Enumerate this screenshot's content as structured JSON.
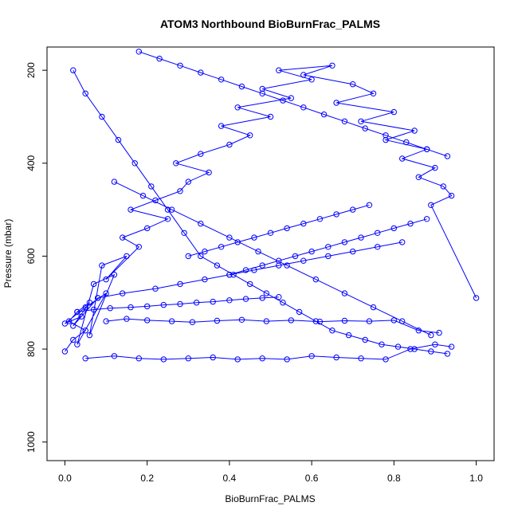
{
  "chart_data": {
    "type": "scatter",
    "title": "ATOM3 Northbound BioBurnFrac_PALMS",
    "xlabel": "BioBurnFrac_PALMS",
    "ylabel": "Pressure (mbar)",
    "xlim": [
      0.0,
      1.0
    ],
    "ylim": [
      1040,
      150
    ],
    "y_reversed": true,
    "x_ticks": [
      0.0,
      0.2,
      0.4,
      0.6,
      0.8,
      1.0
    ],
    "x_tick_labels": [
      "0.0",
      "0.2",
      "0.4",
      "0.6",
      "0.8",
      "1.0"
    ],
    "y_ticks": [
      200,
      400,
      600,
      800,
      1000
    ],
    "y_tick_labels": [
      "200",
      "400",
      "600",
      "800",
      "1000"
    ],
    "grid": false,
    "legend": "none",
    "marker": "open-circle",
    "connected": true,
    "color": "#0000ff",
    "series": [
      {
        "x": [
          0.0,
          0.02,
          0.05,
          0.01,
          0.03,
          0.06,
          0.02,
          0.08,
          0.04,
          0.0,
          0.05,
          0.1,
          0.03,
          0.07,
          0.12,
          0.06,
          0.09,
          0.15,
          0.1,
          0.18,
          0.14,
          0.2,
          0.25,
          0.16,
          0.22,
          0.28,
          0.3,
          0.35,
          0.27,
          0.33,
          0.4,
          0.45,
          0.38,
          0.5,
          0.42,
          0.55,
          0.48,
          0.6,
          0.52,
          0.65,
          0.58,
          0.7,
          0.75,
          0.66,
          0.8,
          0.72,
          0.85,
          0.78,
          0.88,
          0.82,
          0.9,
          0.86,
          0.92,
          0.94,
          0.89,
          1.0
        ],
        "y": [
          805,
          780,
          760,
          740,
          720,
          700,
          750,
          690,
          730,
          745,
          710,
          680,
          790,
          660,
          640,
          770,
          620,
          600,
          650,
          580,
          560,
          540,
          520,
          500,
          480,
          460,
          440,
          420,
          400,
          380,
          360,
          340,
          320,
          300,
          280,
          260,
          240,
          220,
          200,
          190,
          210,
          230,
          250,
          270,
          290,
          310,
          330,
          350,
          370,
          390,
          410,
          430,
          450,
          470,
          490,
          690
        ]
      },
      {
        "x": [
          0.02,
          0.05,
          0.09,
          0.13,
          0.17,
          0.21,
          0.25,
          0.29,
          0.33,
          0.37,
          0.41,
          0.45,
          0.49,
          0.53,
          0.57,
          0.61,
          0.65,
          0.69,
          0.73,
          0.77,
          0.81,
          0.85,
          0.89,
          0.93
        ],
        "y": [
          200,
          250,
          300,
          350,
          400,
          450,
          500,
          550,
          600,
          620,
          640,
          660,
          680,
          700,
          720,
          740,
          760,
          770,
          780,
          790,
          795,
          800,
          805,
          810
        ]
      },
      {
        "x": [
          0.05,
          0.12,
          0.18,
          0.24,
          0.3,
          0.36,
          0.42,
          0.48,
          0.54,
          0.6,
          0.66,
          0.72,
          0.78,
          0.84,
          0.9,
          0.94
        ],
        "y": [
          820,
          815,
          820,
          822,
          820,
          818,
          822,
          820,
          822,
          815,
          818,
          820,
          822,
          800,
          790,
          795
        ]
      },
      {
        "x": [
          0.1,
          0.15,
          0.2,
          0.26,
          0.31,
          0.37,
          0.43,
          0.49,
          0.55,
          0.62,
          0.68,
          0.74,
          0.8,
          0.86,
          0.91
        ],
        "y": [
          740,
          735,
          738,
          740,
          742,
          739,
          737,
          740,
          738,
          741,
          739,
          740,
          738,
          760,
          765
        ]
      },
      {
        "x": [
          0.08,
          0.14,
          0.22,
          0.28,
          0.34,
          0.4,
          0.46,
          0.52,
          0.58,
          0.64,
          0.7,
          0.76,
          0.82
        ],
        "y": [
          690,
          680,
          670,
          660,
          650,
          640,
          630,
          620,
          610,
          600,
          590,
          580,
          570
        ]
      },
      {
        "x": [
          0.18,
          0.23,
          0.28,
          0.33,
          0.38,
          0.43,
          0.48,
          0.53,
          0.58,
          0.63,
          0.68,
          0.73,
          0.78,
          0.83,
          0.88,
          0.93
        ],
        "y": [
          160,
          175,
          190,
          205,
          220,
          235,
          250,
          265,
          280,
          295,
          310,
          325,
          340,
          355,
          370,
          385
        ]
      },
      {
        "x": [
          0.3,
          0.34,
          0.38,
          0.42,
          0.46,
          0.5,
          0.54,
          0.58,
          0.62,
          0.66,
          0.7,
          0.74
        ],
        "y": [
          600,
          590,
          580,
          570,
          560,
          550,
          540,
          530,
          520,
          510,
          500,
          490
        ]
      },
      {
        "x": [
          0.03,
          0.07,
          0.11,
          0.16,
          0.2,
          0.24,
          0.28,
          0.32,
          0.36,
          0.4,
          0.44,
          0.48,
          0.52
        ],
        "y": [
          720,
          715,
          712,
          710,
          708,
          705,
          703,
          700,
          698,
          695,
          692,
          690,
          688
        ]
      },
      {
        "x": [
          0.12,
          0.19,
          0.26,
          0.33,
          0.4,
          0.47,
          0.54,
          0.61,
          0.68,
          0.75,
          0.82,
          0.89
        ],
        "y": [
          440,
          470,
          500,
          530,
          560,
          590,
          620,
          650,
          680,
          710,
          740,
          770
        ]
      },
      {
        "x": [
          0.4,
          0.44,
          0.48,
          0.52,
          0.56,
          0.6,
          0.64,
          0.68,
          0.72,
          0.76,
          0.8,
          0.84,
          0.88
        ],
        "y": [
          640,
          630,
          620,
          610,
          600,
          590,
          580,
          570,
          560,
          550,
          540,
          530,
          520
        ]
      }
    ]
  }
}
